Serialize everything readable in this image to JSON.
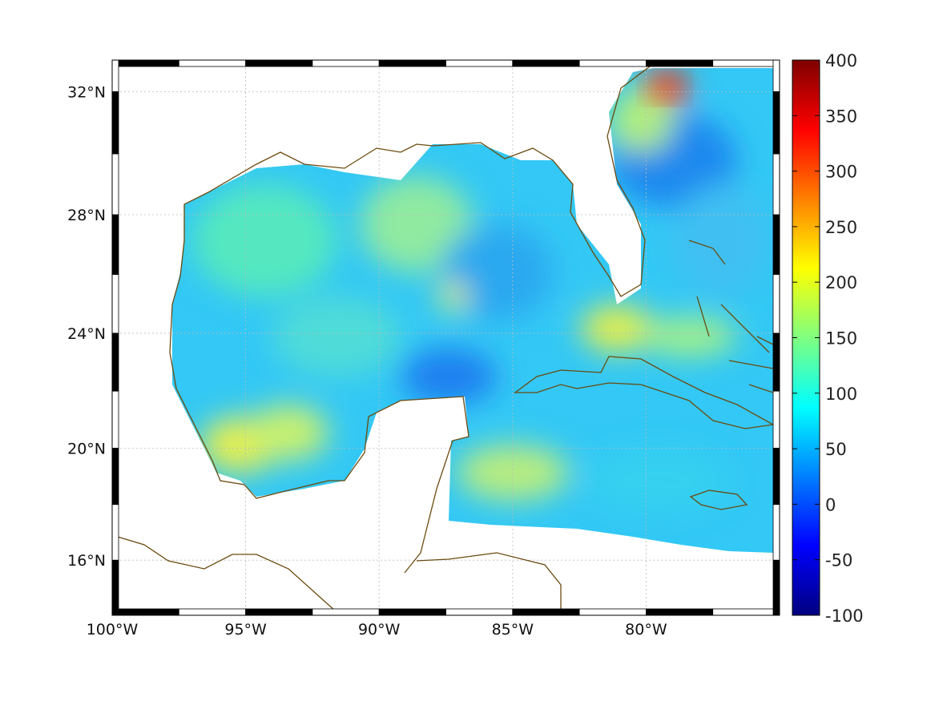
{
  "map": {
    "projection": "mercator",
    "lon_range": [
      -100,
      -75
    ],
    "lat_range": [
      14,
      33
    ],
    "lon_labels": [
      {
        "lon": -100,
        "text": "100°W"
      },
      {
        "lon": -95,
        "text": "95°W"
      },
      {
        "lon": -90,
        "text": "90°W"
      },
      {
        "lon": -85,
        "text": "85°W"
      },
      {
        "lon": -80,
        "text": "80°W"
      }
    ],
    "lat_labels": [
      {
        "lat": 32,
        "text": "32°N"
      },
      {
        "lat": 28,
        "text": "28°N"
      },
      {
        "lat": 24,
        "text": "24°N"
      },
      {
        "lat": 20,
        "text": "20°N"
      },
      {
        "lat": 16,
        "text": "16°N"
      }
    ],
    "coastline_color": "#6b4a0f"
  },
  "colorbar": {
    "colormap": "jet",
    "range": [
      -100,
      400
    ],
    "ticks": [
      "400",
      "350",
      "300",
      "250",
      "200",
      "150",
      "100",
      "50",
      "0",
      "-50",
      "-100"
    ]
  }
}
